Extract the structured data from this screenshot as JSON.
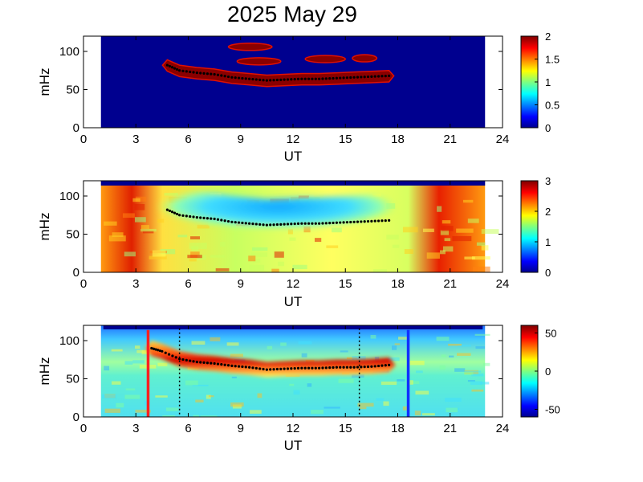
{
  "page_title": "2025 May 29",
  "colors": {
    "background": "#00008f",
    "ridge": "#000000",
    "marker_red": "#ff2020",
    "marker_blue": "#1030ff"
  },
  "chart_data": [
    {
      "type": "heatmap",
      "panel": 1,
      "xlabel": "UT",
      "ylabel": "mHz",
      "xlim": [
        0,
        24
      ],
      "ylim": [
        0,
        120
      ],
      "xticks": [
        "0",
        "3",
        "6",
        "9",
        "12",
        "15",
        "18",
        "21",
        "24"
      ],
      "yticks": [
        "0",
        "50",
        "100"
      ],
      "data_window": [
        1,
        23
      ],
      "colorbar": {
        "range": [
          0,
          2
        ],
        "ticks": [
          "0",
          "0.5",
          "1",
          "1.5",
          "2"
        ]
      },
      "ridge": {
        "x": [
          4.8,
          5.5,
          6.5,
          7.5,
          8.5,
          9.5,
          10.5,
          11.5,
          12.5,
          13.5,
          14.5,
          15.5,
          16.5,
          17.5
        ],
        "y": [
          82,
          75,
          72,
          70,
          66,
          64,
          62,
          63,
          64,
          64,
          65,
          66,
          67,
          68
        ]
      },
      "blobs": [
        {
          "x_range": [
            8.3,
            10.8
          ],
          "f_center": 106
        },
        {
          "x_range": [
            8.8,
            11.3
          ],
          "f_center": 87
        },
        {
          "x_range": [
            12.7,
            15.0
          ],
          "f_center": 90
        },
        {
          "x_range": [
            15.4,
            16.8
          ],
          "f_center": 91
        }
      ]
    },
    {
      "type": "heatmap",
      "panel": 2,
      "xlabel": "UT",
      "ylabel": "mHz",
      "xlim": [
        0,
        24
      ],
      "ylim": [
        0,
        120
      ],
      "xticks": [
        "0",
        "3",
        "6",
        "9",
        "12",
        "15",
        "18",
        "21",
        "24"
      ],
      "yticks": [
        "0",
        "50",
        "100"
      ],
      "data_window": [
        1,
        23
      ],
      "colorbar": {
        "range": [
          0,
          3
        ],
        "ticks": [
          "0",
          "1",
          "2",
          "3"
        ]
      },
      "ridge": {
        "x": [
          4.8,
          5.5,
          6.5,
          7.5,
          8.5,
          9.5,
          10.5,
          11.5,
          12.5,
          13.5,
          14.5,
          15.5,
          16.5,
          17.5
        ],
        "y": [
          82,
          75,
          72,
          70,
          66,
          64,
          62,
          63,
          64,
          64,
          65,
          66,
          67,
          68
        ]
      }
    },
    {
      "type": "heatmap",
      "panel": 3,
      "xlabel": "UT",
      "ylabel": "mHz",
      "xlim": [
        0,
        24
      ],
      "ylim": [
        0,
        120
      ],
      "xticks": [
        "0",
        "3",
        "6",
        "9",
        "12",
        "15",
        "18",
        "21",
        "24"
      ],
      "yticks": [
        "0",
        "50",
        "100"
      ],
      "data_window": [
        1,
        23
      ],
      "colorbar": {
        "range": [
          -60,
          60
        ],
        "ticks": [
          "-50",
          "0",
          "50"
        ]
      },
      "ridge": {
        "x": [
          3.9,
          4.5,
          5.5,
          6.5,
          7.5,
          8.5,
          9.5,
          10.5,
          11.5,
          12.5,
          13.5,
          14.5,
          15.5,
          16.5,
          17.5
        ],
        "y": [
          90,
          86,
          76,
          72,
          70,
          67,
          65,
          62,
          63,
          64,
          64,
          65,
          65,
          66,
          68
        ]
      },
      "vertical_markers": [
        {
          "x": 3.7,
          "style": "solid",
          "color": "red"
        },
        {
          "x": 5.5,
          "style": "dotted",
          "color": "black"
        },
        {
          "x": 15.8,
          "style": "dotted",
          "color": "black"
        },
        {
          "x": 18.6,
          "style": "solid",
          "color": "blue"
        }
      ]
    }
  ]
}
